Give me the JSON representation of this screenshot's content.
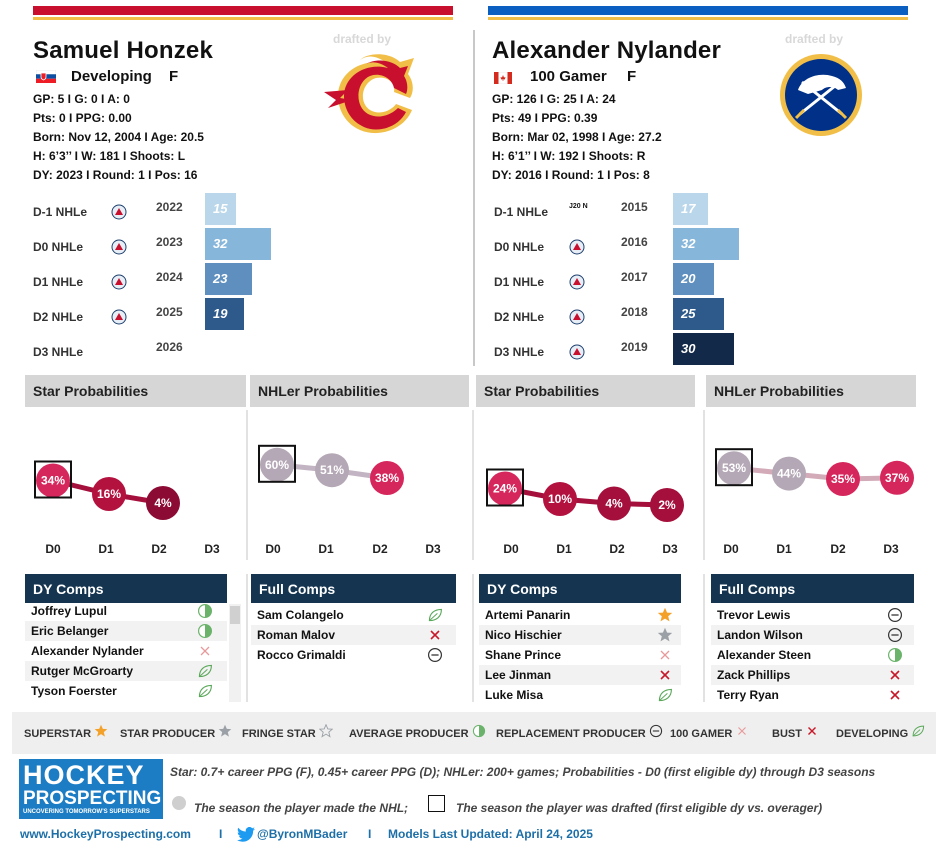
{
  "left": {
    "name": "Samuel Honzek",
    "status": "Developing",
    "position": "F",
    "gp_line": "GP: 5 I G: 0 I A: 0",
    "pts_line": "Pts: 0 I PPG: 0.00",
    "born_line": "Born: Nov 12, 2004 I Age: 20.5",
    "size_line": "H: 6’3’’ I W: 181 I Shoots: L",
    "draft_line": "DY: 2023 I Round: 1 I Pos: 16",
    "drafted_by": "drafted by",
    "accent": "#c8102e",
    "seasons": [
      {
        "label": "D-1 NHLe",
        "year": "2022",
        "value": "15",
        "v": 15,
        "color": "#b9d6ea"
      },
      {
        "label": "D0 NHLe",
        "year": "2023",
        "value": "32",
        "v": 32,
        "color": "#86b6da"
      },
      {
        "label": "D1 NHLe",
        "year": "2024",
        "value": "23",
        "v": 23,
        "color": "#5f8fbe"
      },
      {
        "label": "D2 NHLe",
        "year": "2025",
        "value": "19",
        "v": 19,
        "color": "#2d5a8a"
      },
      {
        "label": "D3 NHLe",
        "year": "2026",
        "value": "",
        "v": 0,
        "color": "#ffffff"
      }
    ],
    "star_prob": {
      "title": "Star Probabilities",
      "labels": [
        "34%",
        "16%",
        "4%"
      ],
      "values": [
        34,
        16,
        4
      ]
    },
    "nhler_prob": {
      "title": "NHLer Probabilities",
      "labels": [
        "60%",
        "51%",
        "38%"
      ],
      "values": [
        60,
        51,
        38
      ]
    },
    "dy_comps": {
      "title": "DY Comps",
      "rows": [
        "Joffrey Lupul",
        "Eric Belanger",
        "Alexander Nylander",
        "Rutger McGroarty",
        "Tyson Foerster"
      ],
      "icons": [
        "average",
        "average",
        "x-light",
        "leaf",
        "leaf"
      ]
    },
    "full_comps": {
      "title": "Full Comps",
      "rows": [
        "Sam Colangelo",
        "Roman Malov",
        "Rocco Grimaldi"
      ],
      "icons": [
        "leaf",
        "x",
        "minus"
      ]
    }
  },
  "right": {
    "name": "Alexander Nylander",
    "status": "100 Gamer",
    "position": "F",
    "gp_line": "GP: 126 I G: 25 I A: 24",
    "pts_line": "Pts: 49 I PPG: 0.39",
    "born_line": "Born: Mar 02, 1998 I Age: 27.2",
    "size_line": "H: 6’1’’ I W: 192 I Shoots: R",
    "draft_line": "DY: 2016 I Round: 1 I Pos: 8",
    "drafted_by": "drafted by",
    "accent": "#0b5fc0",
    "seasons": [
      {
        "label": "D-1 NHLe",
        "year": "2015",
        "value": "17",
        "v": 17,
        "color": "#b9d6ea",
        "league": "J20 N"
      },
      {
        "label": "D0 NHLe",
        "year": "2016",
        "value": "32",
        "v": 32,
        "color": "#86b6da"
      },
      {
        "label": "D1 NHLe",
        "year": "2017",
        "value": "20",
        "v": 20,
        "color": "#5f8fbe"
      },
      {
        "label": "D2 NHLe",
        "year": "2018",
        "value": "25",
        "v": 25,
        "color": "#2d5a8a"
      },
      {
        "label": "D3 NHLe",
        "year": "2019",
        "value": "30",
        "v": 30,
        "color": "#13294a"
      }
    ],
    "star_prob": {
      "title": "Star Probabilities",
      "labels": [
        "24%",
        "10%",
        "4%",
        "2%"
      ],
      "values": [
        24,
        10,
        4,
        2
      ]
    },
    "nhler_prob": {
      "title": "NHLer Probabilities",
      "labels": [
        "53%",
        "44%",
        "35%",
        "37%"
      ],
      "values": [
        53,
        44,
        35,
        37
      ]
    },
    "dy_comps": {
      "title": "DY Comps",
      "rows": [
        "Artemi Panarin",
        "Nico Hischier",
        "Shane Prince",
        "Lee Jinman",
        "Luke Misa"
      ],
      "icons": [
        "star-orange",
        "star-gray",
        "x-light",
        "x",
        "leaf"
      ]
    },
    "full_comps": {
      "title": "Full Comps",
      "rows": [
        "Trevor Lewis",
        "Landon Wilson",
        "Alexander Steen",
        "Zack Phillips",
        "Terry Ryan"
      ],
      "icons": [
        "minus",
        "minus",
        "average",
        "x",
        "x"
      ]
    }
  },
  "axis_labels": [
    "D0",
    "D1",
    "D2",
    "D3"
  ],
  "legend": [
    {
      "label": "SUPERSTAR",
      "icon": "star-orange"
    },
    {
      "label": "STAR PRODUCER",
      "icon": "star-gray"
    },
    {
      "label": "FRINGE STAR",
      "icon": "star-outline"
    },
    {
      "label": "AVERAGE PRODUCER",
      "icon": "average"
    },
    {
      "label": "REPLACEMENT PRODUCER",
      "icon": "minus"
    },
    {
      "label": "100 GAMER",
      "icon": "x-light"
    },
    {
      "label": "BUST",
      "icon": "x"
    },
    {
      "label": "DEVELOPING",
      "icon": "leaf"
    }
  ],
  "footer": {
    "logo_line1": "HOCKEY",
    "logo_line2": "PROSPECTING",
    "logo_tag": "UNCOVERING TOMORROW'S SUPERSTARS",
    "note1": "Star: 0.7+ career PPG (F), 0.45+ career PPG (D); NHLer: 200+ games; Probabilities - D0 (first eligible dy) through D3 seasons",
    "note2": "The season the player made the NHL;",
    "note3": "The season the player was drafted (first eligible dy vs. overager)",
    "website": "www.HockeyProspecting.com",
    "twitter": "@ByronMBader",
    "updated": "Models Last Updated: April 24, 2025",
    "sep": "I"
  }
}
